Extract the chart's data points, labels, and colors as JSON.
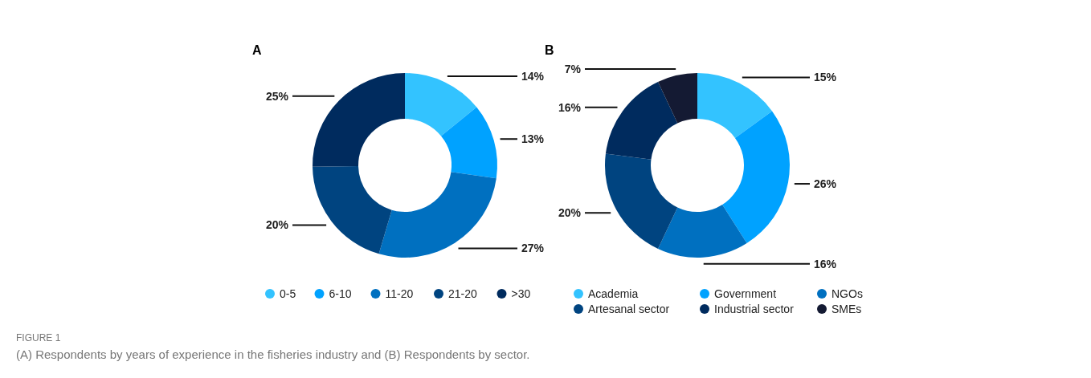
{
  "chart_data": [
    {
      "type": "donut",
      "title": "A",
      "categories": [
        "0-5",
        "6-10",
        "11-20",
        "21-20",
        ">30"
      ],
      "values": [
        14,
        13,
        27,
        20,
        25
      ],
      "value_labels": [
        "14%",
        "13%",
        "27%",
        "20%",
        "25%"
      ],
      "colors": [
        "#33c3ff",
        "#00a2ff",
        "#0070c0",
        "#004480",
        "#002b5e"
      ],
      "legend": "bottom",
      "annotations": [
        "FIGURE 1",
        "(A) Respondents by years of experience in the fisheries industry and (B) Respondents by sector."
      ]
    },
    {
      "type": "donut",
      "title": "B",
      "categories": [
        "Academia",
        "Government",
        "NGOs",
        "Artesanal sector",
        "Industrial sector",
        "SMEs"
      ],
      "values": [
        15,
        26,
        16,
        20,
        16,
        7
      ],
      "value_labels": [
        "15%",
        "26%",
        "16%",
        "20%",
        "16%",
        "7%"
      ],
      "colors": [
        "#33c3ff",
        "#00a2ff",
        "#0070c0",
        "#004480",
        "#002b5e",
        "#141a33"
      ],
      "legend": "bottom"
    }
  ]
}
